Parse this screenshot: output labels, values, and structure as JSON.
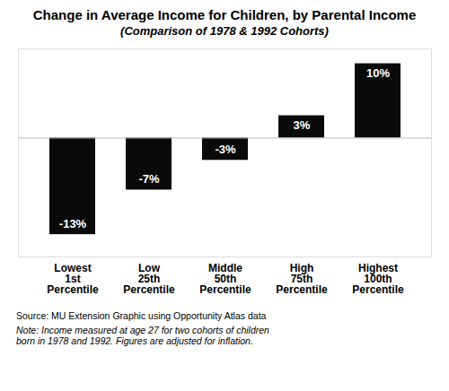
{
  "chart_data": {
    "type": "bar",
    "title": "Change in Average Income for Children, by Parental Income",
    "subtitle": "(Comparison of 1978 & 1992 Cohorts)",
    "categories": [
      "Lowest\n1st\nPercentile",
      "Low\n25th\nPercentile",
      "Middle\n50th\nPercentile",
      "High\n75th\nPercentile",
      "Highest\n100th\nPercentile"
    ],
    "values": [
      -13,
      -7,
      -3,
      3,
      10
    ],
    "value_labels": [
      "-13%",
      "-7%",
      "-3%",
      "3%",
      "10%"
    ],
    "data_labels": true,
    "color": "#0a0a0a",
    "ylim": [
      -16,
      12
    ],
    "tick_labels": "x",
    "grid": false,
    "annotations": [
      "Source: MU Extension Graphic using Opportunity Atlas data",
      "Note: Income measured at age 27 for two cohorts of children\nborn in 1978 and 1992. Figures are adjusted for inflation."
    ]
  }
}
